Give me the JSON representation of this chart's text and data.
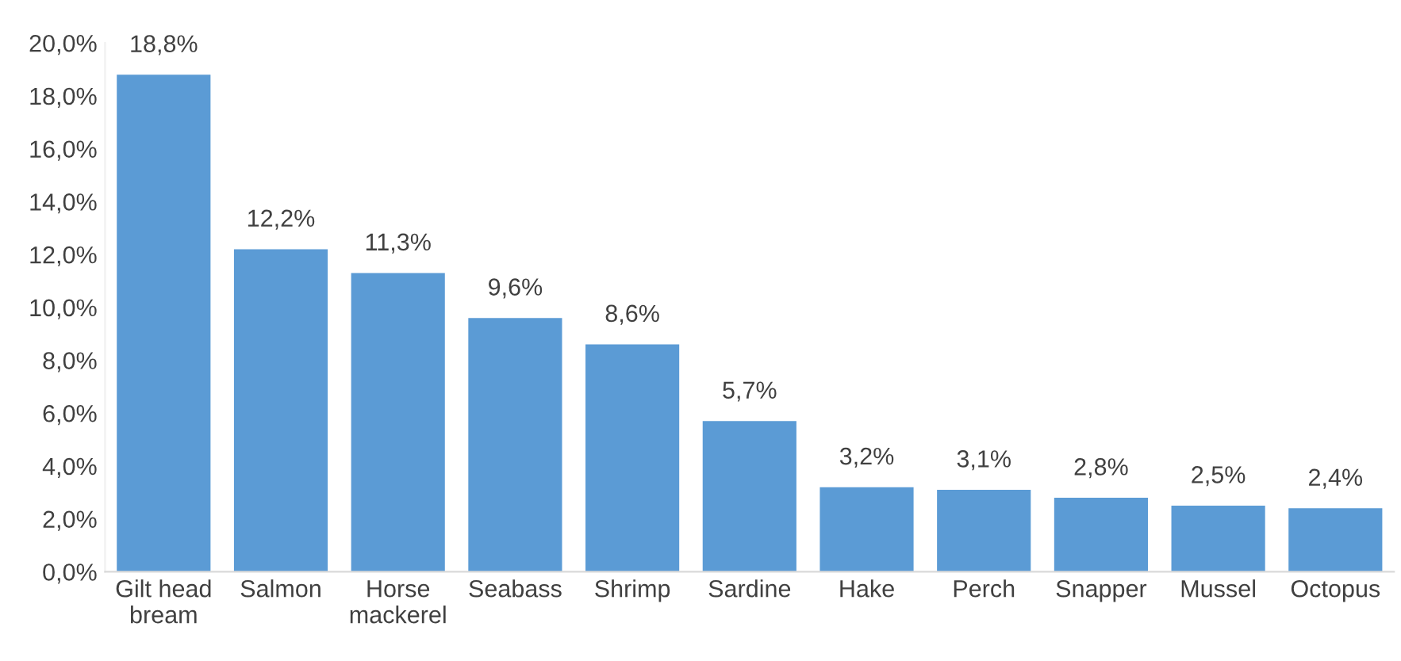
{
  "chart_data": {
    "type": "bar",
    "categories": [
      "Gilt head\nbream",
      "Salmon",
      "Horse\nmackerel",
      "Seabass",
      "Shrimp",
      "Sardine",
      "Hake",
      "Perch",
      "Snapper",
      "Mussel",
      "Octopus"
    ],
    "values": [
      18.8,
      12.2,
      11.3,
      9.6,
      8.6,
      5.7,
      3.2,
      3.1,
      2.8,
      2.5,
      2.4
    ],
    "value_labels": [
      "18,8%",
      "12,2%",
      "11,3%",
      "9,6%",
      "8,6%",
      "5,7%",
      "3,2%",
      "3,1%",
      "2,8%",
      "2,5%",
      "2,4%"
    ],
    "color": "#5b9bd5",
    "ylim": [
      0,
      20
    ],
    "yticks": [
      {
        "value": 0,
        "label": "0,0%"
      },
      {
        "value": 2,
        "label": "2,0%"
      },
      {
        "value": 4,
        "label": "4,0%"
      },
      {
        "value": 6,
        "label": "6,0%"
      },
      {
        "value": 8,
        "label": "8,0%"
      },
      {
        "value": 10,
        "label": "10,0%"
      },
      {
        "value": 12,
        "label": "12,0%"
      },
      {
        "value": 14,
        "label": "14,0%"
      },
      {
        "value": 16,
        "label": "16,0%"
      },
      {
        "value": 18,
        "label": "18,0%"
      },
      {
        "value": 20,
        "label": "20,0%"
      }
    ],
    "grid": false,
    "legend": false
  }
}
